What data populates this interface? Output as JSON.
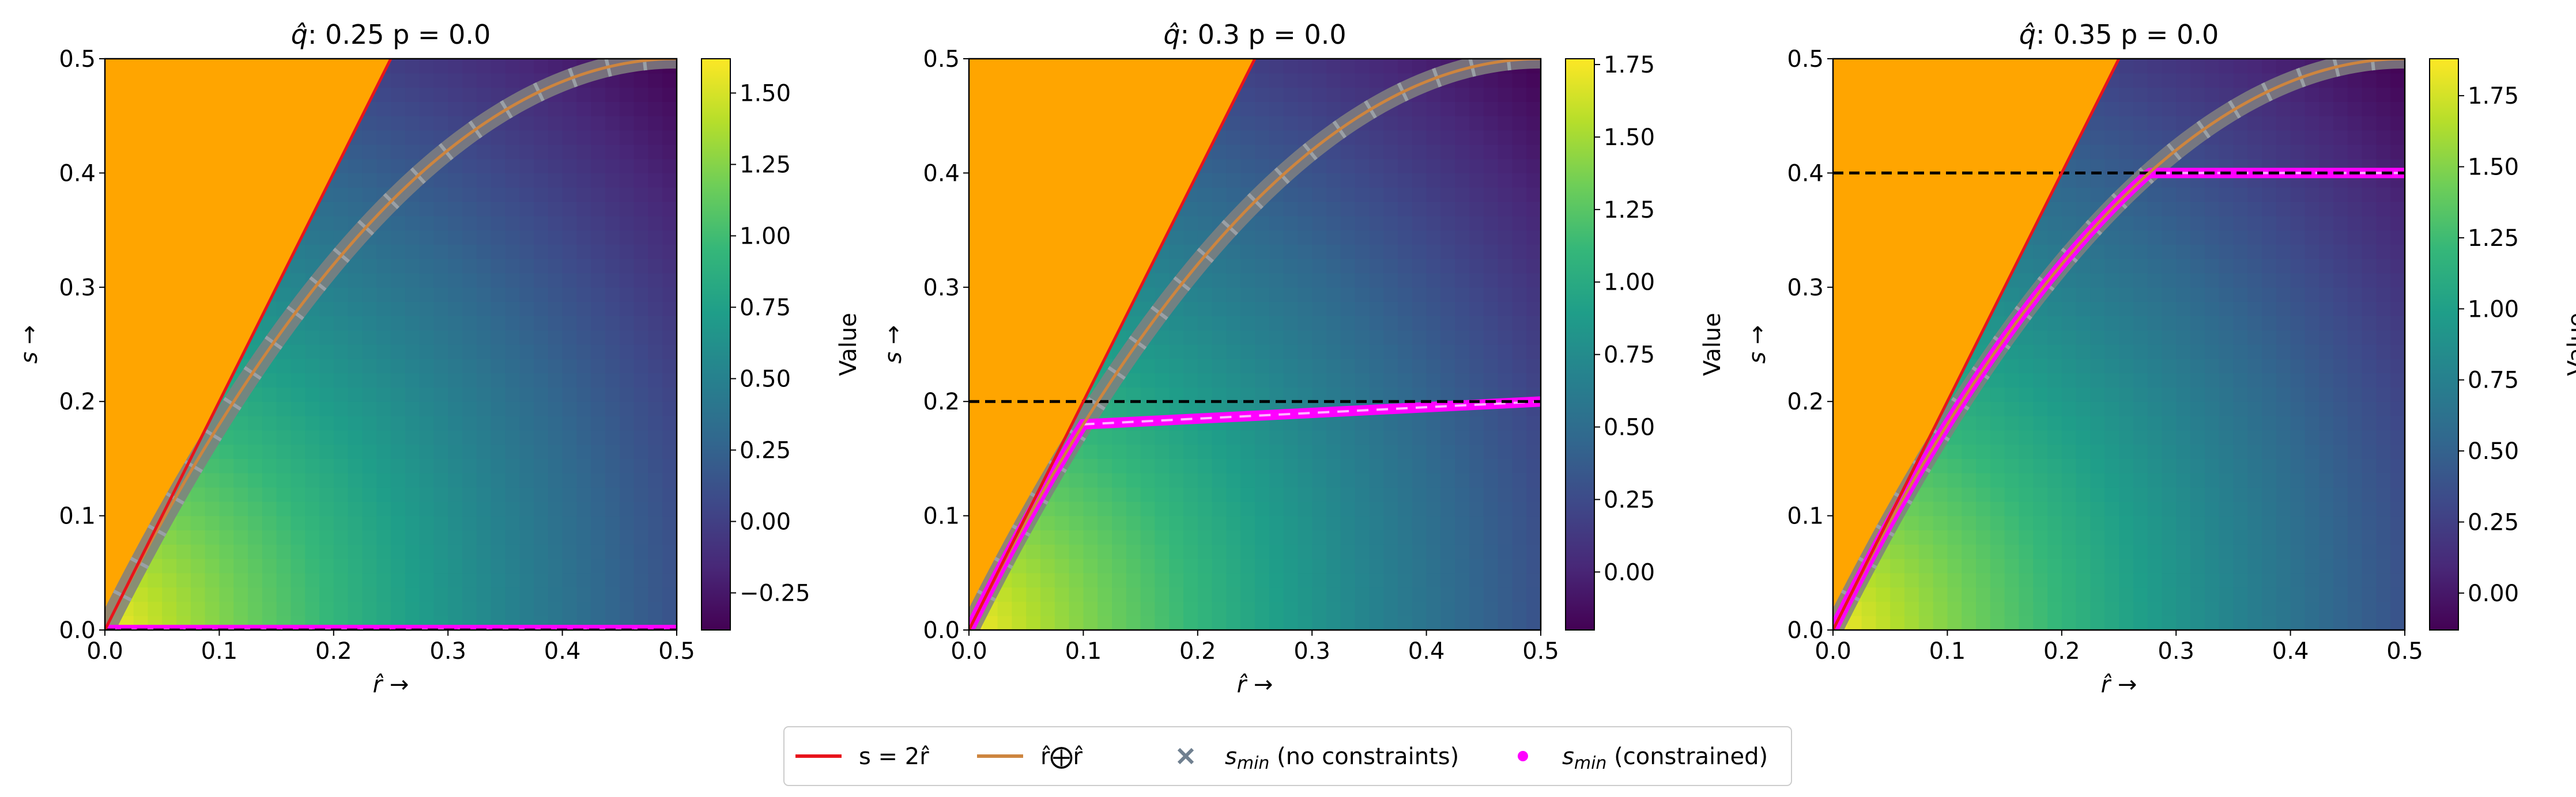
{
  "colormap": [
    "#440154",
    "#482878",
    "#3e4989",
    "#31688e",
    "#26828e",
    "#1f9e89",
    "#35b779",
    "#6ece58",
    "#b5de2b",
    "#fde725"
  ],
  "colors": {
    "infeasible_region": "#ffa500",
    "line_s_2r": "#e8141b",
    "line_r_oplus_r": "#cd853f",
    "band": "#808080",
    "unconstrained_marker": "#708090",
    "constrained_marker": "#ff00ff",
    "dashed_line": "#000000"
  },
  "chart_data": [
    {
      "type": "heatmap",
      "title_hat": "q",
      "title_rest": ": 0.25   p = 0.0",
      "xlabel_hat": "r",
      "ylabel": "s",
      "arrow": "→",
      "xlim": [
        0,
        0.5
      ],
      "ylim": [
        0,
        0.5
      ],
      "xticks": [
        "0.0",
        "0.1",
        "0.2",
        "0.3",
        "0.4",
        "0.5"
      ],
      "yticks": [
        "0.0",
        "0.1",
        "0.2",
        "0.3",
        "0.4",
        "0.5"
      ],
      "q": 0.25,
      "dashed_s": 0.0,
      "constrained_start_r": 0.0,
      "colorbar": {
        "label": "Value",
        "vmin": -0.38,
        "vmax": 1.62,
        "ticks": [
          -0.25,
          0.0,
          0.25,
          0.5,
          0.75,
          1.0,
          1.25,
          1.5
        ],
        "ticklabels": [
          "−0.25",
          "0.00",
          "0.25",
          "0.50",
          "0.75",
          "1.00",
          "1.25",
          "1.50"
        ]
      }
    },
    {
      "type": "heatmap",
      "title_hat": "q",
      "title_rest": ": 0.3   p = 0.0",
      "xlabel_hat": "r",
      "ylabel": "s",
      "arrow": "→",
      "xlim": [
        0,
        0.5
      ],
      "ylim": [
        0,
        0.5
      ],
      "xticks": [
        "0.0",
        "0.1",
        "0.2",
        "0.3",
        "0.4",
        "0.5"
      ],
      "yticks": [
        "0.0",
        "0.1",
        "0.2",
        "0.3",
        "0.4",
        "0.5"
      ],
      "q": 0.3,
      "dashed_s": 0.2,
      "constrained_start_r": 0.1,
      "colorbar": {
        "label": "Value",
        "vmin": -0.2,
        "vmax": 1.77,
        "ticks": [
          0.0,
          0.25,
          0.5,
          0.75,
          1.0,
          1.25,
          1.5,
          1.75
        ],
        "ticklabels": [
          "0.00",
          "0.25",
          "0.50",
          "0.75",
          "1.00",
          "1.25",
          "1.50",
          "1.75"
        ]
      }
    },
    {
      "type": "heatmap",
      "title_hat": "q",
      "title_rest": ": 0.35   p = 0.0",
      "xlabel_hat": "r",
      "ylabel": "s",
      "arrow": "→",
      "xlim": [
        0,
        0.5
      ],
      "ylim": [
        0,
        0.5
      ],
      "xticks": [
        "0.0",
        "0.1",
        "0.2",
        "0.3",
        "0.4",
        "0.5"
      ],
      "yticks": [
        "0.0",
        "0.1",
        "0.2",
        "0.3",
        "0.4",
        "0.5"
      ],
      "q": 0.35,
      "dashed_s": 0.4,
      "constrained_start_r": 0.28,
      "colorbar": {
        "label": "Value",
        "vmin": -0.13,
        "vmax": 1.88,
        "ticks": [
          0.0,
          0.25,
          0.5,
          0.75,
          1.0,
          1.25,
          1.5,
          1.75
        ],
        "ticklabels": [
          "0.00",
          "0.25",
          "0.50",
          "0.75",
          "1.00",
          "1.25",
          "1.50",
          "1.75"
        ]
      }
    }
  ],
  "legend": {
    "placement": "bottom-center",
    "entries": [
      {
        "kind": "line",
        "color": "#e8141b",
        "label": "s = 2r̂"
      },
      {
        "kind": "line",
        "color": "#cd853f",
        "label": "r̂⨁r̂"
      },
      {
        "kind": "x",
        "color": "#708090",
        "label_math": "s",
        "label_sub": "min",
        "label_rest": " (no constraints)"
      },
      {
        "kind": "dot",
        "color": "#ff00ff",
        "label_math": "s",
        "label_sub": "min",
        "label_rest": " (constrained)"
      }
    ]
  }
}
